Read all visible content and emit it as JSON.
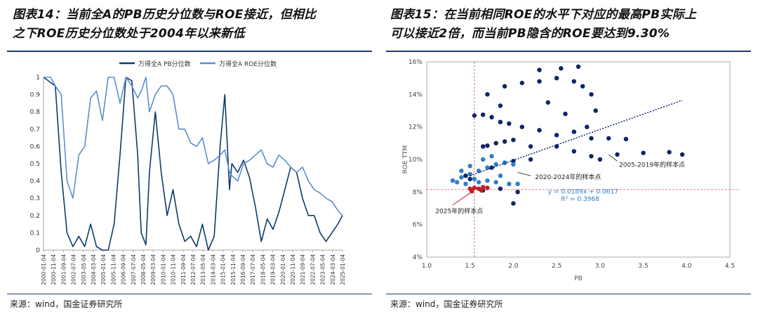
{
  "left_panel": {
    "title": "图表14：当前全A的PB历史分位数与ROE接近，但相比\n之下ROE历史分位数处于2004年以来新低",
    "source": "来源：wind，国金证券研究所"
  },
  "right_panel": {
    "title": "图表15：在当前相同ROE的水平下对应的最高PB实际上\n可以接近2倍，而当前PB隐含的ROE要达到9.30%",
    "source": "来源：wind，国金证券研究所"
  },
  "colors": {
    "dark_navy": "#0c3a6b",
    "light_blue": "#5b8fd0",
    "scatter_navy": "#10236b",
    "scatter_blue": "#2e7fc8",
    "scatter_red": "#c01f26",
    "ref_line": "#e05050",
    "rule": "#1f3b73"
  },
  "chart_data": [
    {
      "type": "line",
      "legend": [
        "万得全A PB分位数",
        "万得全A ROE分位数"
      ],
      "legend_position": "top",
      "ylim": [
        0,
        1
      ],
      "yticks": [
        "0",
        "0.1",
        "0.2",
        "0.3",
        "0.4",
        "0.5",
        "0.6",
        "0.7",
        "0.8",
        "0.9",
        "1"
      ],
      "xticks": [
        "2000-01-04",
        "2000-11-04",
        "2001-09-04",
        "2002-07-04",
        "2003-05-04",
        "2004-03-04",
        "2005-01-04",
        "2005-11-04",
        "2006-09-04",
        "2007-07-04",
        "2008-05-04",
        "2009-03-04",
        "2010-01-04",
        "2010-11-04",
        "2011-09-04",
        "2012-07-04",
        "2013-05-04",
        "2014-03-04",
        "2015-01-04",
        "2015-11-04",
        "2016-09-04",
        "2017-07-04",
        "2018-05-04",
        "2019-03-04",
        "2020-01-04",
        "2020-11-04",
        "2021-09-04",
        "2022-07-04",
        "2023-05-04",
        "2024-03-04",
        "2025-01-04"
      ],
      "x_years": [
        2000.0,
        2000.6,
        2001.0,
        2001.5,
        2002.0,
        2002.5,
        2003.0,
        2003.5,
        2004.0,
        2004.5,
        2005.0,
        2005.5,
        2006.0,
        2006.5,
        2007.0,
        2007.5,
        2008.0,
        2008.3,
        2008.7,
        2009.0,
        2009.5,
        2010.0,
        2010.5,
        2011.0,
        2011.5,
        2012.0,
        2012.5,
        2013.0,
        2013.5,
        2014.0,
        2014.5,
        2015.0,
        2015.4,
        2015.8,
        2016.0,
        2016.5,
        2017.0,
        2017.5,
        2018.0,
        2018.5,
        2019.0,
        2019.5,
        2020.0,
        2020.5,
        2021.0,
        2021.5,
        2022.0,
        2022.5,
        2023.0,
        2023.5,
        2024.0,
        2024.5,
        2025.0,
        2025.4
      ],
      "series": [
        {
          "name": "万得全A PB分位数",
          "values": [
            1.0,
            0.97,
            0.95,
            0.45,
            0.1,
            0.02,
            0.08,
            0.02,
            0.15,
            0.02,
            0.0,
            0.0,
            0.15,
            0.55,
            1.0,
            0.98,
            0.55,
            0.1,
            0.03,
            0.45,
            0.8,
            0.45,
            0.2,
            0.35,
            0.15,
            0.05,
            0.08,
            0.02,
            0.15,
            0.0,
            0.08,
            0.6,
            0.9,
            0.35,
            0.5,
            0.45,
            0.52,
            0.42,
            0.25,
            0.05,
            0.18,
            0.12,
            0.22,
            0.35,
            0.48,
            0.45,
            0.3,
            0.2,
            0.2,
            0.1,
            0.05,
            0.1,
            0.15,
            0.2
          ]
        },
        {
          "name": "万得全A ROE分位数",
          "values": [
            1.0,
            1.0,
            0.95,
            0.9,
            0.4,
            0.3,
            0.55,
            0.6,
            0.88,
            0.92,
            0.75,
            1.0,
            1.0,
            0.85,
            1.0,
            0.95,
            0.88,
            0.92,
            1.0,
            0.8,
            0.9,
            0.95,
            0.95,
            0.9,
            0.7,
            0.7,
            0.62,
            0.6,
            0.65,
            0.5,
            0.52,
            0.55,
            0.58,
            0.45,
            0.43,
            0.4,
            0.5,
            0.52,
            0.55,
            0.58,
            0.5,
            0.48,
            0.55,
            0.52,
            0.48,
            0.45,
            0.48,
            0.4,
            0.35,
            0.33,
            0.3,
            0.28,
            0.23,
            0.2
          ]
        }
      ]
    },
    {
      "type": "scatter",
      "xlabel": "PB",
      "ylabel": "ROE TTM",
      "xlim": [
        1.0,
        4.5
      ],
      "ylim": [
        4,
        16
      ],
      "xticks": [
        "1.0",
        "1.5",
        "2.0",
        "2.5",
        "3.0",
        "3.5",
        "4.0",
        "4.5"
      ],
      "yticks": [
        "4%",
        "6%",
        "8%",
        "10%",
        "12%",
        "14%",
        "16%"
      ],
      "annotations": {
        "label_2005_2019": "2005-2019年的样本点",
        "label_2020_2024": "2020-2024年的样本点",
        "label_2025": "2025年的样本点",
        "equation": "y = 0.0189x + 0.0617",
        "r2": "R² = 0.3968"
      },
      "trendline": {
        "slope_pct": 1.89,
        "intercept_pct": 6.17,
        "x_range": [
          1.5,
          3.95
        ]
      },
      "reference": {
        "x": 1.55,
        "y": 8.15
      },
      "clusters": [
        {
          "name": "2005-2019",
          "color": "scatter_navy",
          "points": [
            [
              1.65,
              10.8
            ],
            [
              1.7,
              10.85
            ],
            [
              1.8,
              11.0
            ],
            [
              1.9,
              11.1
            ],
            [
              2.0,
              11.2
            ],
            [
              1.55,
              12.7
            ],
            [
              1.65,
              12.75
            ],
            [
              1.75,
              12.6
            ],
            [
              1.85,
              12.3
            ],
            [
              1.95,
              12.2
            ],
            [
              2.1,
              12.0
            ],
            [
              2.3,
              11.8
            ],
            [
              2.5,
              11.5
            ],
            [
              2.7,
              11.7
            ],
            [
              2.9,
              11.3
            ],
            [
              3.1,
              11.3
            ],
            [
              3.3,
              11.25
            ],
            [
              1.7,
              14.0
            ],
            [
              1.9,
              14.5
            ],
            [
              2.1,
              14.7
            ],
            [
              2.3,
              14.8
            ],
            [
              2.5,
              15.0
            ],
            [
              2.7,
              14.8
            ],
            [
              2.8,
              14.5
            ],
            [
              2.9,
              14.0
            ],
            [
              2.95,
              13.0
            ],
            [
              2.85,
              12.0
            ],
            [
              2.5,
              10.8
            ],
            [
              2.7,
              10.5
            ],
            [
              2.9,
              10.2
            ],
            [
              3.2,
              10.3
            ],
            [
              3.5,
              10.4
            ],
            [
              3.8,
              10.45
            ],
            [
              3.95,
              10.3
            ],
            [
              1.75,
              9.5
            ],
            [
              1.9,
              9.8
            ],
            [
              2.0,
              9.9
            ],
            [
              2.2,
              10.0
            ],
            [
              2.05,
              8.0
            ],
            [
              2.0,
              7.3
            ],
            [
              1.85,
              8.2
            ],
            [
              1.65,
              8.1
            ],
            [
              1.5,
              8.8
            ],
            [
              1.45,
              9.0
            ],
            [
              2.3,
              15.5
            ],
            [
              2.55,
              15.6
            ],
            [
              2.75,
              15.7
            ],
            [
              1.85,
              13.3
            ],
            [
              2.4,
              13.5
            ],
            [
              2.6,
              12.8
            ],
            [
              3.0,
              10.0
            ],
            [
              2.2,
              10.8
            ]
          ]
        },
        {
          "name": "2020-2024",
          "color": "scatter_blue",
          "points": [
            [
              1.3,
              8.7
            ],
            [
              1.4,
              8.9
            ],
            [
              1.5,
              9.1
            ],
            [
              1.6,
              9.3
            ],
            [
              1.7,
              9.5
            ],
            [
              1.8,
              9.7
            ],
            [
              1.9,
              9.8
            ],
            [
              2.0,
              9.7
            ],
            [
              1.6,
              8.6
            ],
            [
              1.7,
              8.7
            ],
            [
              1.8,
              8.6
            ],
            [
              1.95,
              8.5
            ],
            [
              2.05,
              8.5
            ],
            [
              1.5,
              9.6
            ],
            [
              1.65,
              10.0
            ],
            [
              1.75,
              10.2
            ],
            [
              1.4,
              9.3
            ],
            [
              1.55,
              8.8
            ],
            [
              1.85,
              9.0
            ],
            [
              1.45,
              8.5
            ],
            [
              1.35,
              8.6
            ]
          ]
        },
        {
          "name": "2025",
          "color": "scatter_red",
          "points": [
            [
              1.5,
              8.2
            ],
            [
              1.55,
              8.25
            ],
            [
              1.6,
              8.2
            ],
            [
              1.65,
              8.3
            ],
            [
              1.7,
              8.25
            ],
            [
              1.52,
              8.05
            ],
            [
              1.63,
              8.1
            ]
          ]
        }
      ]
    }
  ]
}
